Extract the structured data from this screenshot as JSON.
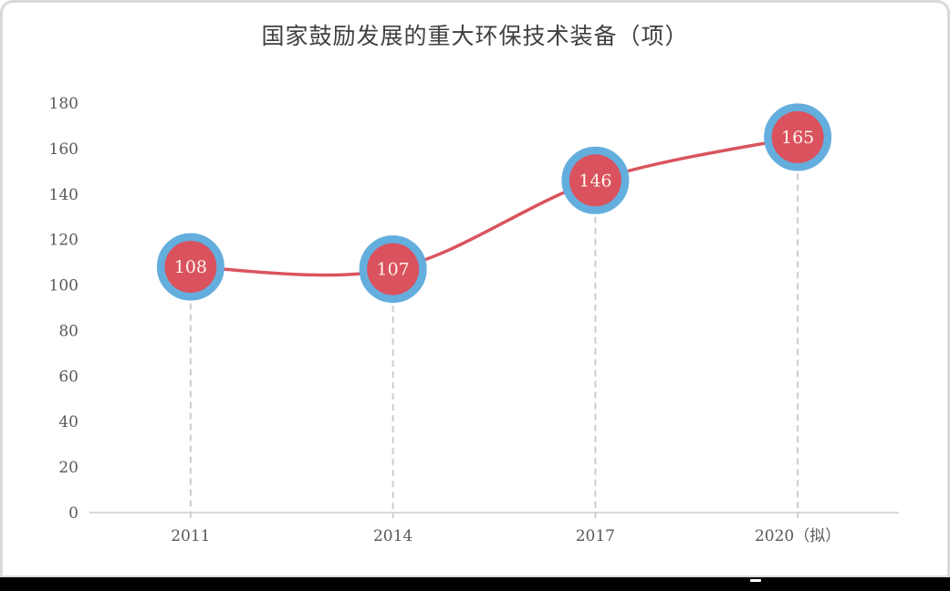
{
  "chart_data": {
    "type": "line",
    "title": "国家鼓励发展的重大环保技术装备（项）",
    "categories": [
      "2011",
      "2014",
      "2017",
      "2020（拟）"
    ],
    "values": [
      108,
      107,
      146,
      165
    ],
    "ylim": [
      0,
      180
    ],
    "ytick_step": 20,
    "ytick_labels": [
      "0",
      "20",
      "40",
      "60",
      "80",
      "100",
      "120",
      "140",
      "160",
      "180"
    ],
    "xlabel": "",
    "ylabel": "",
    "legend": "none",
    "grid": false,
    "line_style": "smooth",
    "marker_style": "red circle with blue ring and white value label, dashed gray drop line to axis"
  },
  "style": {
    "line_color": "#d9545e",
    "marker_fill": "#d9525e",
    "marker_ring": "#64aede",
    "marker_text_color": "#fdf5ec",
    "title_color": "#404040",
    "axis_text_color": "#595959",
    "baseline_color": "#d9d9d9",
    "dropline_color": "#cccccc",
    "card_border_color": "#d9d9d9",
    "bottom_bar_color": "#000000",
    "bottom_bar_marker_color": "#ffffff"
  }
}
